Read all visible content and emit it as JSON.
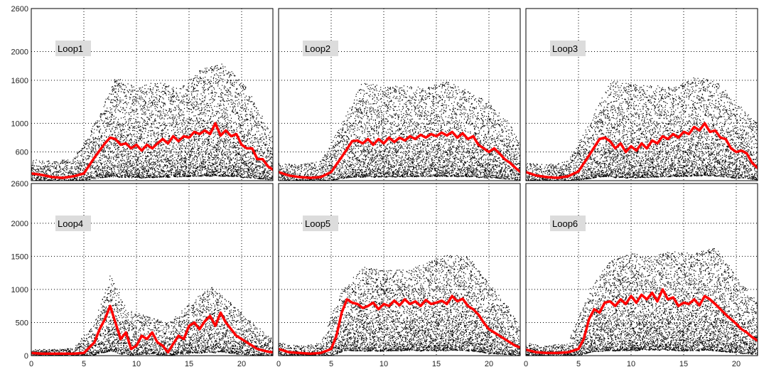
{
  "chart_data": [
    {
      "type": "scatter",
      "title": "",
      "xlabel": "",
      "ylabel": "",
      "label": "Loop1",
      "xlim": [
        0,
        23.5
      ],
      "ylim": [
        200,
        2600
      ],
      "xticks": [],
      "yticks": [
        "2600",
        "2000",
        "1600",
        "1000",
        "600"
      ],
      "grid": true,
      "series": [
        {
          "type": "line",
          "color": "#ff0000",
          "x": [
            0,
            1,
            2,
            3,
            4,
            5,
            6,
            7,
            7.5,
            8,
            8.5,
            9,
            9.5,
            10,
            10.5,
            11,
            11.5,
            12,
            12.5,
            13,
            13.5,
            14,
            14.5,
            15,
            15.5,
            16,
            16.5,
            17,
            17.5,
            18,
            18.5,
            19,
            19.5,
            20,
            20.5,
            21,
            21.5,
            22,
            22.5,
            23
          ],
          "y": [
            300,
            280,
            250,
            240,
            260,
            300,
            520,
            720,
            800,
            780,
            700,
            720,
            650,
            700,
            620,
            700,
            650,
            720,
            780,
            720,
            820,
            750,
            820,
            800,
            880,
            850,
            900,
            850,
            1000,
            830,
            900,
            820,
            850,
            700,
            650,
            650,
            500,
            500,
            400,
            350
          ]
        },
        {
          "type": "scatter",
          "color": "#000000",
          "envelope": "dense",
          "x": [
            0,
            2,
            4,
            6,
            8,
            10,
            12,
            14,
            16,
            18,
            20,
            22,
            23
          ],
          "y_max": [
            500,
            480,
            520,
            1000,
            1650,
            1500,
            1600,
            1500,
            1750,
            1850,
            1600,
            1100,
            800
          ]
        }
      ]
    },
    {
      "type": "scatter",
      "title": "",
      "xlabel": "",
      "ylabel": "",
      "label": "Loop2",
      "xlim": [
        0,
        23.5
      ],
      "ylim": [
        200,
        2600
      ],
      "xticks": [],
      "yticks": [],
      "grid": true,
      "series": [
        {
          "type": "line",
          "color": "#ff0000",
          "x": [
            0,
            1,
            2,
            3,
            4,
            5,
            6,
            7,
            7.5,
            8,
            8.5,
            9,
            9.5,
            10,
            10.5,
            11,
            11.5,
            12,
            12.5,
            13,
            13.5,
            14,
            14.5,
            15,
            15.5,
            16,
            16.5,
            17,
            17.5,
            18,
            18.5,
            19,
            19.5,
            20,
            20.5,
            21,
            21.5,
            22,
            22.5,
            23
          ],
          "y": [
            320,
            270,
            250,
            240,
            250,
            320,
            530,
            750,
            760,
            720,
            780,
            700,
            780,
            720,
            800,
            740,
            800,
            760,
            820,
            780,
            840,
            800,
            850,
            820,
            870,
            830,
            880,
            800,
            860,
            780,
            820,
            700,
            650,
            600,
            650,
            580,
            500,
            450,
            380,
            320
          ]
        },
        {
          "type": "scatter",
          "color": "#000000",
          "envelope": "dense",
          "x": [
            0,
            2,
            4,
            6,
            8,
            10,
            12,
            14,
            16,
            18,
            20,
            22,
            23
          ],
          "y_max": [
            450,
            430,
            480,
            1000,
            1600,
            1500,
            1550,
            1500,
            1600,
            1450,
            1300,
            1000,
            700
          ]
        }
      ]
    },
    {
      "type": "scatter",
      "title": "",
      "xlabel": "",
      "ylabel": "",
      "label": "Loop3",
      "xlim": [
        0,
        23.5
      ],
      "ylim": [
        200,
        2600
      ],
      "xticks": [],
      "yticks": [],
      "grid": true,
      "series": [
        {
          "type": "line",
          "color": "#ff0000",
          "x": [
            0,
            1,
            2,
            3,
            4,
            5,
            6,
            7,
            7.5,
            8,
            8.5,
            9,
            9.5,
            10,
            10.5,
            11,
            11.5,
            12,
            12.5,
            13,
            13.5,
            14,
            14.5,
            15,
            15.5,
            16,
            16.5,
            17,
            17.5,
            18,
            18.5,
            19,
            19.5,
            20,
            20.5,
            21,
            21.5,
            22,
            22.5,
            23
          ],
          "y": [
            320,
            270,
            250,
            240,
            260,
            330,
            550,
            780,
            800,
            750,
            650,
            720,
            600,
            680,
            620,
            720,
            650,
            760,
            720,
            820,
            780,
            850,
            800,
            880,
            850,
            950,
            900,
            1000,
            880,
            900,
            800,
            780,
            650,
            600,
            620,
            580,
            450,
            380,
            300,
            250
          ]
        },
        {
          "type": "scatter",
          "color": "#000000",
          "envelope": "dense",
          "x": [
            0,
            2,
            4,
            6,
            8,
            10,
            12,
            14,
            16,
            18,
            20,
            22,
            23
          ],
          "y_max": [
            450,
            430,
            480,
            1000,
            1600,
            1550,
            1550,
            1500,
            1650,
            1600,
            1300,
            1000,
            650
          ]
        }
      ]
    },
    {
      "type": "scatter",
      "title": "",
      "xlabel": "",
      "ylabel": "",
      "label": "Loop4",
      "xlim": [
        0,
        23.5
      ],
      "ylim": [
        0,
        2600
      ],
      "xticks": [
        "0",
        "5",
        "10",
        "15",
        "20"
      ],
      "yticks": [
        "2600",
        "2000",
        "1500",
        "1000",
        "500",
        "0"
      ],
      "grid": true,
      "series": [
        {
          "type": "line",
          "color": "#ff0000",
          "x": [
            0,
            1,
            2,
            3,
            4,
            5,
            6,
            6.5,
            7,
            7.5,
            8,
            8.5,
            9,
            9.5,
            10,
            10.5,
            11,
            11.5,
            12,
            12.5,
            13,
            13.5,
            14,
            14.5,
            15,
            15.5,
            16,
            16.5,
            17,
            17.5,
            18,
            18.5,
            19,
            19.5,
            20,
            20.5,
            21,
            21.5,
            22,
            22.5,
            23
          ],
          "y": [
            40,
            30,
            30,
            30,
            30,
            40,
            200,
            400,
            550,
            750,
            500,
            250,
            350,
            100,
            150,
            300,
            250,
            350,
            200,
            150,
            50,
            180,
            300,
            250,
            450,
            500,
            400,
            520,
            600,
            450,
            650,
            500,
            400,
            300,
            250,
            200,
            150,
            100,
            80,
            60,
            50
          ]
        },
        {
          "type": "scatter",
          "color": "#000000",
          "envelope": "dense",
          "x": [
            0,
            2,
            4,
            6,
            7.5,
            9,
            11,
            13,
            15,
            17,
            19,
            21,
            23
          ],
          "y_max": [
            100,
            100,
            120,
            500,
            1250,
            700,
            600,
            500,
            800,
            1050,
            800,
            500,
            250
          ]
        }
      ]
    },
    {
      "type": "scatter",
      "title": "",
      "xlabel": "",
      "ylabel": "",
      "label": "Loop5",
      "xlim": [
        0,
        23.5
      ],
      "ylim": [
        0,
        2600
      ],
      "xticks": [
        "0",
        "5",
        "10",
        "15",
        "20"
      ],
      "yticks": [],
      "grid": true,
      "series": [
        {
          "type": "line",
          "color": "#ff0000",
          "x": [
            0,
            1,
            2,
            3,
            4,
            5,
            5.5,
            6,
            6.5,
            7,
            7.5,
            8,
            8.5,
            9,
            9.5,
            10,
            10.5,
            11,
            11.5,
            12,
            12.5,
            13,
            13.5,
            14,
            14.5,
            15,
            15.5,
            16,
            16.5,
            17,
            17.5,
            18,
            18.5,
            19,
            19.5,
            20,
            20.5,
            21,
            21.5,
            22,
            22.5,
            23
          ],
          "y": [
            100,
            50,
            40,
            30,
            40,
            100,
            300,
            650,
            850,
            800,
            780,
            720,
            750,
            800,
            700,
            780,
            750,
            830,
            760,
            850,
            780,
            820,
            750,
            840,
            780,
            800,
            830,
            780,
            900,
            820,
            860,
            750,
            700,
            620,
            500,
            400,
            350,
            300,
            250,
            200,
            150,
            120
          ]
        },
        {
          "type": "scatter",
          "color": "#000000",
          "envelope": "dense",
          "x": [
            0,
            2,
            4,
            6,
            8,
            10,
            12,
            14,
            16,
            18,
            20,
            22,
            23
          ],
          "y_max": [
            200,
            150,
            200,
            1000,
            1350,
            1300,
            1300,
            1400,
            1550,
            1500,
            1100,
            700,
            400
          ]
        }
      ]
    },
    {
      "type": "scatter",
      "title": "",
      "xlabel": "",
      "ylabel": "",
      "label": "Loop6",
      "xlim": [
        0,
        23.5
      ],
      "ylim": [
        0,
        2600
      ],
      "xticks": [
        "0",
        "5",
        "10",
        "15",
        "20"
      ],
      "yticks": [],
      "grid": true,
      "series": [
        {
          "type": "line",
          "color": "#ff0000",
          "x": [
            0,
            1,
            2,
            3,
            4,
            5,
            5.5,
            6,
            6.5,
            7,
            7.5,
            8,
            8.5,
            9,
            9.5,
            10,
            10.5,
            11,
            11.5,
            12,
            12.5,
            13,
            13.5,
            14,
            14.5,
            15,
            15.5,
            16,
            16.5,
            17,
            17.5,
            18,
            18.5,
            19,
            19.5,
            20,
            20.5,
            21,
            21.5,
            22,
            22.5,
            23
          ],
          "y": [
            90,
            50,
            40,
            40,
            50,
            100,
            250,
            550,
            700,
            650,
            800,
            820,
            750,
            850,
            780,
            900,
            800,
            920,
            850,
            950,
            820,
            1000,
            850,
            880,
            750,
            800,
            780,
            850,
            760,
            900,
            850,
            780,
            700,
            620,
            550,
            480,
            400,
            350,
            280,
            230,
            180,
            130
          ]
        },
        {
          "type": "scatter",
          "color": "#000000",
          "envelope": "dense",
          "x": [
            0,
            2,
            4,
            6,
            8,
            10,
            12,
            14,
            16,
            18,
            20,
            22,
            23
          ],
          "y_max": [
            200,
            150,
            200,
            1000,
            1450,
            1550,
            1500,
            1600,
            1550,
            1650,
            1200,
            800,
            400
          ]
        }
      ]
    }
  ]
}
